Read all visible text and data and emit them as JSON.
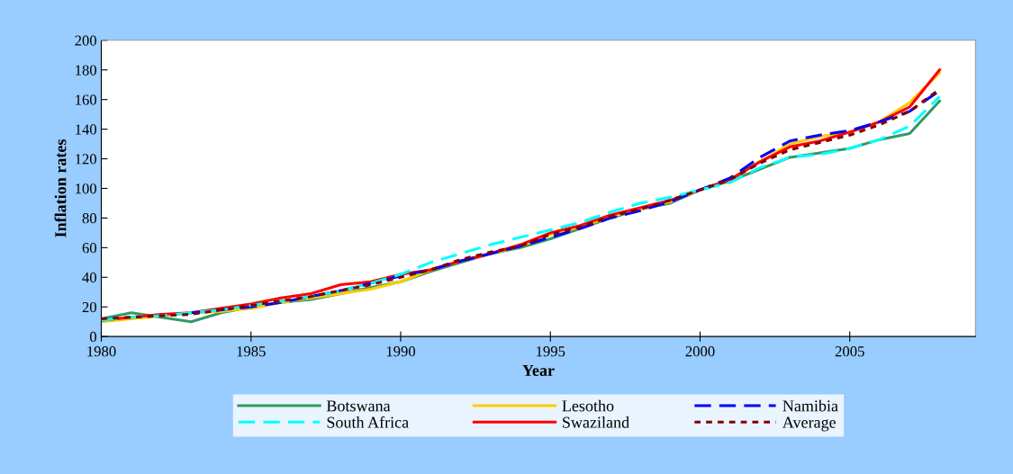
{
  "chart_data": {
    "type": "line",
    "xlabel": "Year",
    "ylabel": "Inflation rates",
    "x": [
      1980,
      1981,
      1982,
      1983,
      1984,
      1985,
      1986,
      1987,
      1988,
      1989,
      1990,
      1991,
      1992,
      1993,
      1994,
      1995,
      1996,
      1997,
      1998,
      1999,
      2000,
      2001,
      2002,
      2003,
      2004,
      2005,
      2006,
      2007,
      2008
    ],
    "xlim": [
      1980,
      2009.2
    ],
    "xticks": [
      1980,
      1985,
      1990,
      1995,
      2000,
      2005
    ],
    "ylim": [
      0,
      200
    ],
    "yticks": [
      0,
      20,
      40,
      60,
      80,
      100,
      120,
      140,
      160,
      180,
      200
    ],
    "grid": false,
    "legend": "bottom",
    "marker": "none",
    "series": [
      {
        "name": "Botswana",
        "color": "#339966",
        "line_style": "solid",
        "values": [
          12,
          16,
          13,
          10,
          16,
          20,
          23,
          25,
          29,
          33,
          37,
          44,
          50,
          56,
          60,
          66,
          73,
          80,
          86,
          90,
          99,
          105,
          113,
          121,
          124,
          127,
          133,
          137,
          159
        ]
      },
      {
        "name": "Lesotho",
        "color": "#ffcc00",
        "line_style": "solid",
        "values": [
          10,
          12,
          14,
          16,
          17,
          19,
          23,
          26,
          29,
          32,
          37,
          45,
          51,
          56,
          61,
          69,
          74,
          81,
          86,
          91,
          99,
          106,
          118,
          130,
          135,
          138,
          145,
          158,
          178
        ]
      },
      {
        "name": "Namibia",
        "color": "#0000ff",
        "line_style": "dashed",
        "values": [
          null,
          null,
          null,
          16,
          18,
          20,
          23,
          27,
          31,
          36,
          41,
          45,
          51,
          56,
          61,
          67,
          73,
          80,
          85,
          91,
          99,
          107,
          121,
          132,
          136,
          139,
          145,
          152,
          166
        ]
      },
      {
        "name": "South Africa",
        "color": "#00ffff",
        "line_style": "dashed",
        "values": [
          11,
          13,
          14,
          16,
          18,
          21,
          24,
          27,
          31,
          36,
          42,
          50,
          56,
          62,
          67,
          72,
          77,
          84,
          90,
          94,
          99,
          104,
          114,
          121,
          123,
          127,
          133,
          142,
          162
        ]
      },
      {
        "name": "Swaziland",
        "color": "#ff0000",
        "line_style": "solid",
        "values": [
          11,
          13,
          15,
          16,
          19,
          22,
          26,
          29,
          35,
          37,
          42,
          45,
          51,
          56,
          62,
          70,
          75,
          82,
          87,
          92,
          99,
          106,
          118,
          128,
          132,
          138,
          145,
          155,
          180
        ]
      },
      {
        "name": "Average",
        "color": "#800000",
        "line_style": "dotted",
        "values": [
          12,
          13,
          14,
          15,
          18,
          21,
          24,
          27,
          31,
          35,
          40,
          45,
          52,
          57,
          61,
          69,
          74,
          81,
          86,
          92,
          99,
          106,
          117,
          126,
          131,
          136,
          143,
          152,
          167
        ]
      }
    ]
  }
}
